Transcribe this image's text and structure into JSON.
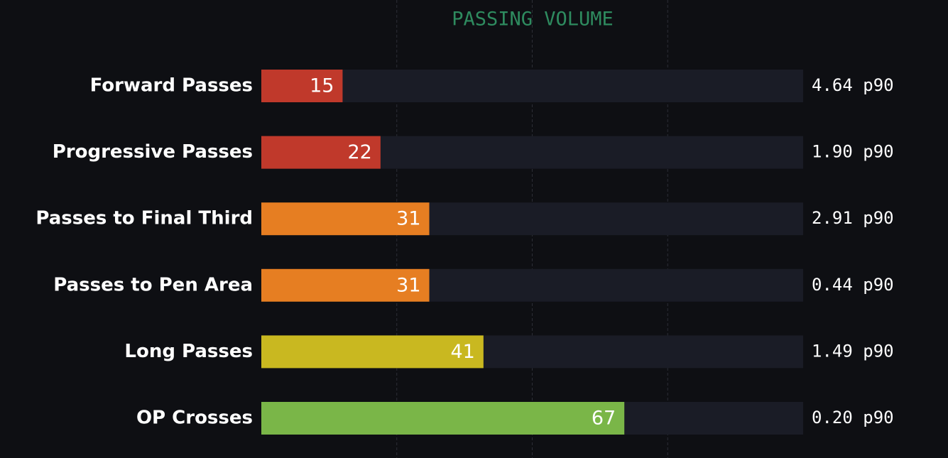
{
  "chart_data": {
    "type": "bar",
    "orientation": "horizontal",
    "title": "PASSING VOLUME",
    "categories": [
      "Forward Passes",
      "Progressive Passes",
      "Passes to Final Third",
      "Passes to Pen Area",
      "Long Passes",
      "OP Crosses"
    ],
    "values": [
      15,
      22,
      31,
      31,
      41,
      67
    ],
    "colors": [
      "#c0392b",
      "#c0392b",
      "#e67e22",
      "#e67e22",
      "#c9b820",
      "#7ab648"
    ],
    "per90_labels": [
      "4.64 p90",
      "1.90 p90",
      "2.91 p90",
      "0.44 p90",
      "1.49 p90",
      "0.20 p90"
    ],
    "xlim": [
      0,
      100
    ],
    "xticks": [
      25,
      50,
      75
    ],
    "grid": true,
    "track_color": "#1a1c26"
  }
}
